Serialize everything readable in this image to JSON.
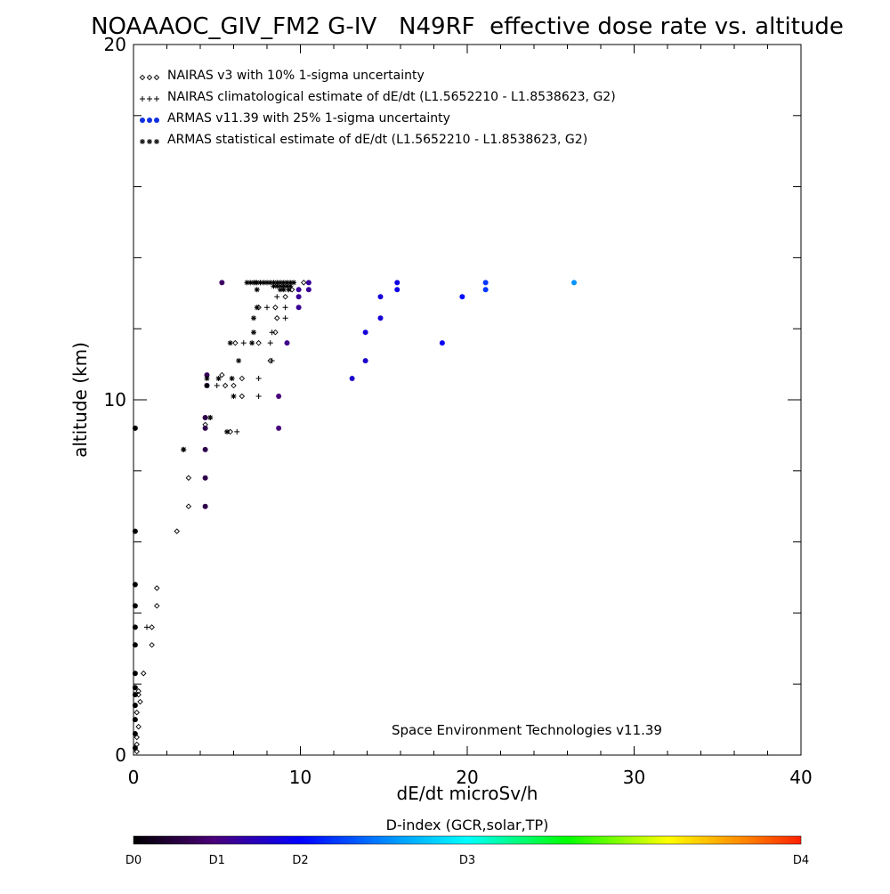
{
  "chart_data": {
    "type": "scatter",
    "title": "NOAAAOC_GIV_FM2 G-IV   N49RF  effective dose rate vs. altitude",
    "xlabel": "dE/dt microSv/h",
    "ylabel": "altitude (km)",
    "xlim": [
      0,
      40
    ],
    "ylim": [
      0,
      20
    ],
    "x_ticks": [
      0,
      10,
      20,
      30,
      40
    ],
    "y_ticks": [
      0,
      10,
      20
    ],
    "grid": false,
    "legend_position": "top-left",
    "legend": [
      {
        "symbol": "diamond",
        "label": "NAIRAS v3 with 10% 1-sigma uncertainty"
      },
      {
        "symbol": "plus",
        "label": "NAIRAS climatological estimate of dE/dt (L1.5652210 - L1.8538623, G2)"
      },
      {
        "symbol": "dot",
        "label": "ARMAS v11.39 with 25% 1-sigma uncertainty"
      },
      {
        "symbol": "asterisk",
        "label": "ARMAS statistical estimate of dE/dt (L1.5652210 - L1.8538623, G2)"
      }
    ],
    "annotation": "Space Environment Technologies v11.39",
    "colorbar": {
      "title": "D-index (GCR,solar,TP)",
      "labels": [
        {
          "text": "D0",
          "value": 0
        },
        {
          "text": "D1",
          "value": 0.5
        },
        {
          "text": "D2",
          "value": 1.0
        },
        {
          "text": "D3",
          "value": 2.0
        },
        {
          "text": "D4",
          "value": 4.0
        }
      ],
      "max": 4.0
    },
    "series": [
      {
        "name": "NAIRAS v3 with 10% 1-sigma uncertainty",
        "marker": "diamond",
        "points": [
          [
            0.2,
            0.1
          ],
          [
            0.2,
            0.3
          ],
          [
            0.2,
            0.5
          ],
          [
            0.3,
            0.8
          ],
          [
            0.2,
            1.2
          ],
          [
            0.4,
            1.5
          ],
          [
            0.3,
            1.7
          ],
          [
            0.3,
            1.8
          ],
          [
            0.6,
            2.3
          ],
          [
            1.1,
            3.1
          ],
          [
            1.1,
            3.6
          ],
          [
            1.4,
            4.2
          ],
          [
            1.4,
            4.7
          ],
          [
            2.6,
            6.3
          ],
          [
            3.3,
            7.0
          ],
          [
            3.3,
            7.8
          ],
          [
            4.3,
            9.3
          ],
          [
            4.3,
            9.5
          ],
          [
            5.8,
            9.1
          ],
          [
            6.5,
            10.1
          ],
          [
            6.5,
            10.6
          ],
          [
            5.3,
            10.7
          ],
          [
            5.5,
            10.4
          ],
          [
            6.0,
            10.4
          ],
          [
            6.1,
            11.6
          ],
          [
            7.5,
            11.6
          ],
          [
            8.2,
            11.1
          ],
          [
            8.5,
            11.9
          ],
          [
            8.6,
            12.3
          ],
          [
            8.5,
            12.6
          ],
          [
            7.5,
            12.6
          ],
          [
            9.1,
            12.9
          ],
          [
            9.5,
            13.1
          ],
          [
            10.2,
            13.3
          ]
        ]
      },
      {
        "name": "NAIRAS climatological estimate of dE/dt (L1.5652210 - L1.8538623, G2)",
        "marker": "plus",
        "points": [
          [
            0.8,
            3.6
          ],
          [
            4.6,
            9.5
          ],
          [
            6.2,
            9.1
          ],
          [
            7.5,
            10.1
          ],
          [
            7.5,
            10.6
          ],
          [
            5.0,
            10.4
          ],
          [
            6.6,
            11.6
          ],
          [
            8.2,
            11.6
          ],
          [
            8.3,
            11.1
          ],
          [
            8.3,
            11.9
          ],
          [
            9.1,
            12.3
          ],
          [
            9.1,
            12.6
          ],
          [
            8.0,
            12.6
          ],
          [
            8.6,
            12.9
          ]
        ]
      },
      {
        "name": "ARMAS v11.39 with 25% 1-sigma uncertainty",
        "marker": "dot",
        "points": [
          [
            0.1,
            0.2
          ],
          [
            0.1,
            0.6
          ],
          [
            0.1,
            1.0
          ],
          [
            0.1,
            1.4
          ],
          [
            0.1,
            1.7
          ],
          [
            0.1,
            1.9
          ],
          [
            0.1,
            2.3
          ],
          [
            0.1,
            3.1
          ],
          [
            0.1,
            3.6
          ],
          [
            0.1,
            4.2
          ],
          [
            0.1,
            4.8
          ],
          [
            0.1,
            6.3
          ],
          [
            0.1,
            9.2
          ],
          [
            4.3,
            7.0
          ],
          [
            4.3,
            7.8
          ],
          [
            4.3,
            8.6
          ],
          [
            4.3,
            9.2
          ],
          [
            4.3,
            9.5
          ],
          [
            8.7,
            9.2
          ],
          [
            4.4,
            10.4
          ],
          [
            4.4,
            10.7
          ],
          [
            8.7,
            10.1
          ],
          [
            9.2,
            11.6
          ],
          [
            9.9,
            12.6
          ],
          [
            9.9,
            12.9
          ],
          [
            9.9,
            13.1
          ],
          [
            5.3,
            13.3
          ],
          [
            10.5,
            13.3
          ],
          [
            10.5,
            13.1
          ],
          [
            13.1,
            10.6
          ],
          [
            13.9,
            11.1
          ],
          [
            13.9,
            11.9
          ],
          [
            14.8,
            12.3
          ],
          [
            14.8,
            12.9
          ],
          [
            15.8,
            13.1
          ],
          [
            15.8,
            13.3
          ],
          [
            18.5,
            11.6
          ],
          [
            19.7,
            12.9
          ],
          [
            21.1,
            13.3
          ],
          [
            21.1,
            13.1
          ],
          [
            26.4,
            13.3
          ]
        ],
        "d_index": [
          0,
          0,
          0,
          0,
          0,
          0,
          0,
          0,
          0,
          0,
          0,
          0,
          0,
          0.3,
          0.3,
          0.3,
          0.3,
          0.3,
          0.5,
          0.3,
          0.35,
          0.5,
          0.55,
          0.6,
          0.6,
          0.6,
          0.4,
          0.6,
          0.6,
          0.8,
          0.8,
          0.85,
          0.85,
          0.85,
          0.9,
          0.9,
          0.95,
          1.05,
          1.2,
          1.2,
          1.55
        ]
      },
      {
        "name": "ARMAS statistical estimate of dE/dt (L1.5652210 - L1.8538623, G2)",
        "marker": "asterisk",
        "points": [
          [
            3.0,
            8.6
          ],
          [
            3.0,
            8.6
          ],
          [
            4.6,
            9.5
          ],
          [
            5.6,
            9.1
          ],
          [
            6.0,
            10.1
          ],
          [
            4.4,
            10.4
          ],
          [
            4.4,
            10.6
          ],
          [
            5.1,
            10.6
          ],
          [
            5.9,
            10.6
          ],
          [
            6.3,
            11.1
          ],
          [
            5.8,
            11.6
          ],
          [
            7.1,
            11.6
          ],
          [
            7.2,
            11.9
          ],
          [
            7.2,
            12.3
          ],
          [
            7.4,
            12.6
          ],
          [
            7.4,
            13.1
          ],
          [
            7.3,
            13.3
          ]
        ]
      },
      {
        "name": "",
        "marker": "asterisk",
        "points": [
          [
            6.8,
            13.3
          ],
          [
            7.0,
            13.3
          ],
          [
            7.2,
            13.3
          ],
          [
            7.4,
            13.3
          ],
          [
            7.6,
            13.3
          ],
          [
            7.8,
            13.3
          ],
          [
            8.0,
            13.3
          ],
          [
            8.2,
            13.3
          ],
          [
            8.4,
            13.3
          ],
          [
            8.6,
            13.3
          ],
          [
            8.8,
            13.3
          ],
          [
            9.0,
            13.3
          ],
          [
            9.2,
            13.3
          ],
          [
            9.4,
            13.3
          ],
          [
            9.6,
            13.3
          ],
          [
            8.4,
            13.2
          ],
          [
            8.6,
            13.2
          ],
          [
            8.8,
            13.2
          ],
          [
            9.0,
            13.2
          ],
          [
            9.2,
            13.2
          ],
          [
            9.4,
            13.2
          ],
          [
            8.8,
            13.1
          ],
          [
            9.0,
            13.1
          ],
          [
            9.3,
            13.1
          ]
        ]
      }
    ]
  }
}
